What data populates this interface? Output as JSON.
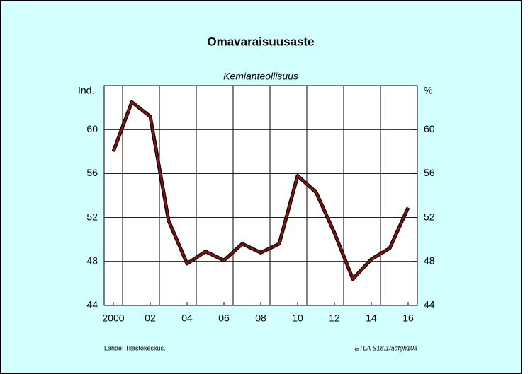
{
  "chart_data": {
    "type": "line",
    "title": "Omavaraisuusaste",
    "subtitle": "Kemianteollisuus",
    "y_label": "Ind.",
    "y2_label": "%",
    "source": "Lähde:  Tilastokeskus.",
    "code": "ETLA S18.1/adfgh10a",
    "x": [
      2000,
      2001,
      2002,
      2003,
      2004,
      2005,
      2006,
      2007,
      2008,
      2009,
      2010,
      2011,
      2012,
      2013,
      2014,
      2015,
      2016
    ],
    "series": [
      {
        "name": "Kemianteollisuus",
        "color": "#8b1111",
        "values": [
          58.0,
          62.5,
          61.2,
          51.7,
          47.8,
          48.9,
          48.1,
          49.6,
          48.8,
          49.6,
          55.8,
          54.3,
          50.6,
          46.4,
          48.2,
          49.2,
          52.9
        ]
      }
    ],
    "xlim": [
      1999.5,
      2016.5
    ],
    "xticks": [
      {
        "value": 2000,
        "label": "2000"
      },
      {
        "value": 2002,
        "label": "02"
      },
      {
        "value": 2004,
        "label": "04"
      },
      {
        "value": 2006,
        "label": "06"
      },
      {
        "value": 2008,
        "label": "08"
      },
      {
        "value": 2010,
        "label": "10"
      },
      {
        "value": 2012,
        "label": "12"
      },
      {
        "value": 2014,
        "label": "14"
      },
      {
        "value": 2016,
        "label": "16"
      }
    ],
    "xgrid": [
      2000.5,
      2002.5,
      2004.5,
      2006.5,
      2008.5,
      2010.5,
      2012.5,
      2014.5
    ],
    "ylim": [
      44,
      64
    ],
    "yticks": [
      44,
      48,
      52,
      56,
      60
    ],
    "y2lim": [
      44,
      64
    ],
    "y2ticks": [
      44,
      48,
      52,
      56,
      60
    ],
    "grid": true
  }
}
